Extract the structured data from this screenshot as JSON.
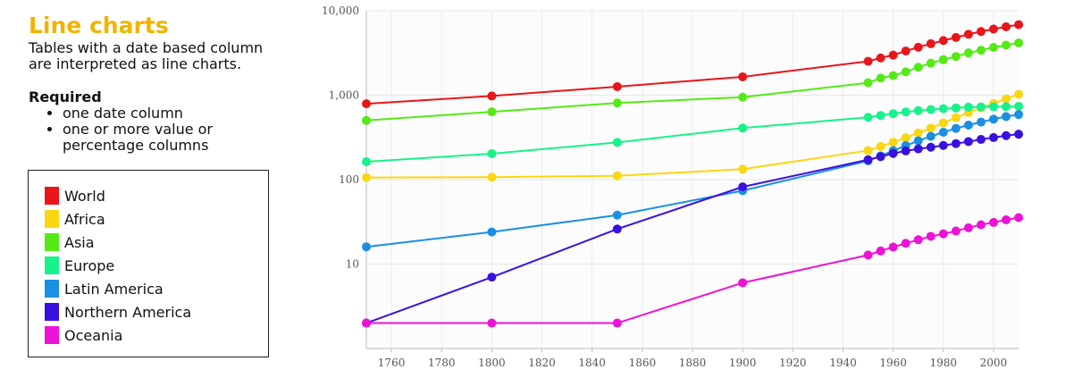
{
  "panel": {
    "title": "Line charts",
    "title_color": "#f0b400",
    "description": "Tables with a date based column are interpreted as line charts.",
    "required_title": "Required",
    "required_items": [
      "one date column",
      "one or more value or percentage columns"
    ]
  },
  "chart_data": {
    "type": "line",
    "title": "",
    "xlabel": "",
    "ylabel": "",
    "yscale": "log",
    "xlim": [
      1750,
      2010
    ],
    "ylim": [
      1,
      10000
    ],
    "x_ticks": [
      1760,
      1780,
      1800,
      1820,
      1840,
      1860,
      1880,
      1900,
      1920,
      1940,
      1960,
      1980,
      2000
    ],
    "y_ticks": [
      {
        "value": 10,
        "label": "10"
      },
      {
        "value": 100,
        "label": "100"
      },
      {
        "value": 1000,
        "label": "1,000"
      },
      {
        "value": 10000,
        "label": "10,000"
      }
    ],
    "grid": true,
    "legend_position": "left",
    "x": [
      1750,
      1800,
      1850,
      1900,
      1950,
      1955,
      1960,
      1965,
      1970,
      1975,
      1980,
      1985,
      1990,
      1995,
      2000,
      2005,
      2010
    ],
    "series": [
      {
        "name": "World",
        "color": "#e8161b",
        "values": [
          791,
          978,
          1262,
          1650,
          2519,
          2756,
          2982,
          3335,
          3692,
          4068,
          4435,
          4831,
          5263,
          5674,
          6070,
          6454,
          6842
        ]
      },
      {
        "name": "Africa",
        "color": "#fbd612",
        "values": [
          106,
          107,
          111,
          133,
          221,
          247,
          277,
          314,
          357,
          408,
          470,
          542,
          622,
          707,
          796,
          905,
          1022
        ]
      },
      {
        "name": "Asia",
        "color": "#55ea16",
        "values": [
          502,
          635,
          809,
          947,
          1403,
          1594,
          1703,
          1891,
          2142,
          2394,
          2632,
          2871,
          3168,
          3408,
          3680,
          3917,
          4164
        ]
      },
      {
        "name": "Europe",
        "color": "#18f28a",
        "values": [
          163,
          203,
          276,
          408,
          547,
          575,
          604,
          634,
          656,
          676,
          692,
          706,
          721,
          727,
          728,
          731,
          738
        ]
      },
      {
        "name": "Latin America",
        "color": "#1a8fe3",
        "values": [
          16,
          24,
          38,
          74,
          167,
          191,
          220,
          253,
          288,
          325,
          364,
          404,
          442,
          480,
          520,
          557,
          590
        ]
      },
      {
        "name": "Northern America",
        "color": "#3a10e0",
        "values": [
          2,
          7,
          26,
          82,
          172,
          187,
          204,
          219,
          231,
          242,
          254,
          267,
          282,
          299,
          315,
          332,
          345
        ]
      },
      {
        "name": "Oceania",
        "color": "#ee12d6",
        "values": [
          2,
          2,
          2,
          6,
          12.8,
          14.3,
          15.9,
          17.6,
          19.4,
          21.3,
          22.8,
          24.6,
          26.9,
          29.2,
          31.1,
          33.4,
          35.5
        ]
      }
    ]
  }
}
